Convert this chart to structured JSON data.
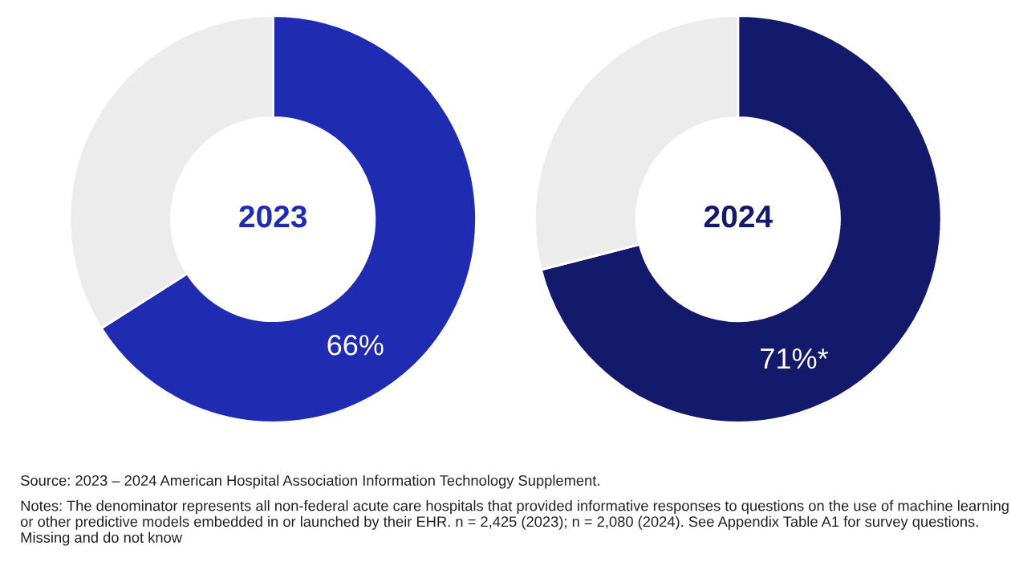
{
  "chart_data": [
    {
      "type": "donut",
      "title": "2023",
      "categories": [
        null,
        null
      ],
      "values": [
        66,
        34
      ],
      "colors": [
        "#1f2bb0",
        "#ececec"
      ],
      "value_labels": [
        "66%",
        null
      ],
      "annotations": [
        "Source: 2023 – 2024 American Hospital Association Information Technology Supplement.",
        "Notes: The denominator represents all non-federal acute care hospitals that provided informative responses to questions on the use of machine learning or other predictive models embedded in or launched by their EHR. n = 2,425 (2023); n = 2,080 (2024). See Appendix Table A1 for survey questions. Missing and do not know"
      ]
    },
    {
      "type": "donut",
      "title": "2024",
      "categories": [
        null,
        null
      ],
      "values": [
        71,
        29
      ],
      "colors": [
        "#141a6b",
        "#ececec"
      ],
      "value_labels": [
        "71%*",
        null
      ]
    }
  ]
}
